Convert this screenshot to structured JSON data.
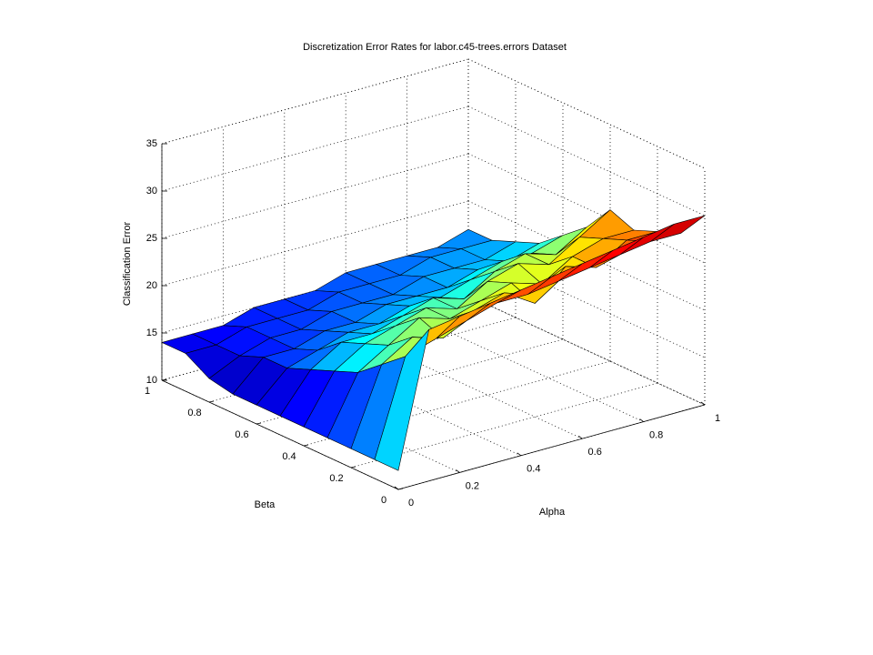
{
  "chart_data": {
    "type": "surface",
    "title": "Discretization Error Rates for labor.c45-trees.errors Dataset",
    "x_label": "Alpha",
    "y_label": "Beta",
    "z_label": "Classification Error",
    "colormap": "jet",
    "grid": true,
    "x": [
      0,
      0.1,
      0.2,
      0.3,
      0.4,
      0.5,
      0.6,
      0.7,
      0.8,
      0.9,
      1
    ],
    "y": [
      0,
      0.1,
      0.2,
      0.3,
      0.4,
      0.5,
      0.6,
      0.7,
      0.8,
      0.9,
      1
    ],
    "z": [
      [
        12,
        26,
        26.5,
        27,
        27.5,
        28,
        28.5,
        29,
        29.5,
        30,
        30
      ],
      [
        12,
        22,
        23,
        24,
        25,
        25,
        25.5,
        26,
        26.5,
        27,
        27
      ],
      [
        12,
        20,
        22,
        21,
        23,
        24,
        22,
        25,
        24,
        26,
        26
      ],
      [
        12,
        18,
        20,
        22,
        21,
        22,
        23,
        22,
        24,
        25,
        25
      ],
      [
        12,
        17,
        19,
        20,
        21,
        20,
        22,
        23,
        22,
        24,
        26
      ],
      [
        12,
        16,
        18,
        18,
        19,
        20,
        19,
        21,
        22,
        21,
        23
      ],
      [
        12,
        15,
        16,
        17,
        17,
        18,
        18,
        19,
        20,
        20,
        21
      ],
      [
        12,
        15,
        15,
        16,
        16,
        17,
        17,
        17,
        18,
        18,
        19
      ],
      [
        12.5,
        14,
        15,
        15,
        16,
        16,
        16,
        17,
        17,
        17,
        18
      ],
      [
        14,
        14,
        15,
        15,
        15,
        16,
        16,
        16,
        17,
        17,
        17
      ],
      [
        14,
        14,
        14,
        15,
        15,
        15,
        16,
        16,
        16,
        16,
        17
      ]
    ],
    "xlim": [
      0,
      1
    ],
    "ylim": [
      0,
      1
    ],
    "zlim": [
      10,
      35
    ],
    "xticks": [
      0,
      0.2,
      0.4,
      0.6,
      0.8,
      1
    ],
    "yticks": [
      0,
      0.2,
      0.4,
      0.6,
      0.8,
      1
    ],
    "zticks": [
      10,
      15,
      20,
      25,
      30,
      35
    ]
  }
}
